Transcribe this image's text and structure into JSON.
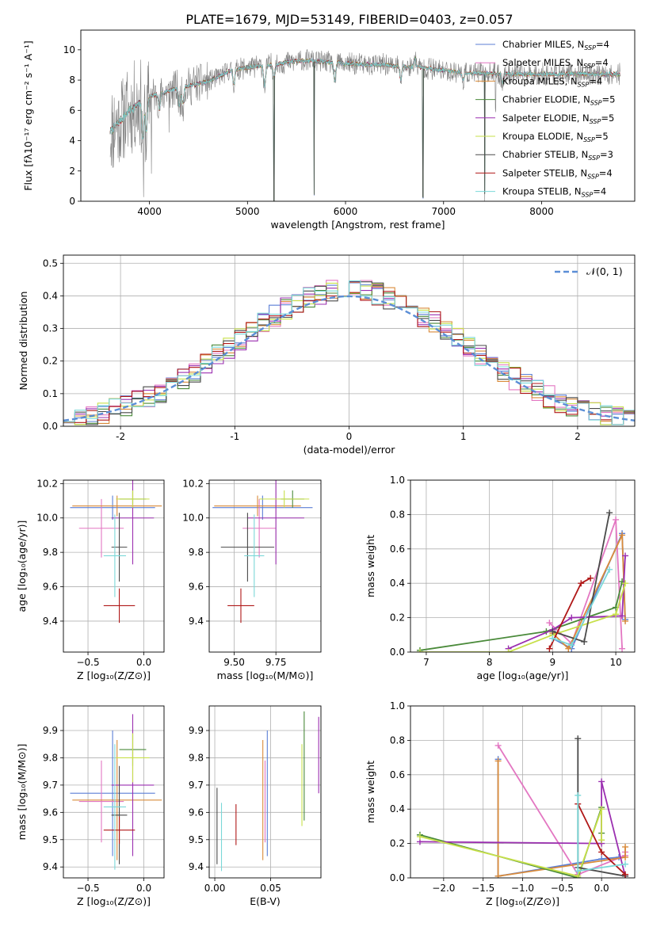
{
  "figure": {
    "title": "PLATE=1679, MJD=53149, FIBERID=0403, z=0.057"
  },
  "colors": {
    "Chabrier MILES": "#5b7fd6",
    "Salpeter MILES": "#e377c2",
    "Kroupa MILES": "#d98b3a",
    "Chabrier ELODIE": "#4a8a3a",
    "Salpeter ELODIE": "#9b2fb0",
    "Kroupa ELODIE": "#c7e04a",
    "Chabrier STELIB": "#4a4a4a",
    "Salpeter STELIB": "#b01818",
    "Kroupa STELIB": "#7ad8d8",
    "observed": "#808080",
    "normal": "#5b8ed6",
    "grid": "#b0b0b0"
  },
  "chart_data": [
    {
      "id": "spectrum",
      "type": "line",
      "xlabel": "wavelength [Angstrom, rest frame]",
      "ylabel": "Flux [fλ10⁻¹⁷ erg cm⁻² s⁻¹ A⁻¹]",
      "xlim": [
        3300,
        8950
      ],
      "ylim": [
        0,
        11.3
      ],
      "xticks": [
        4000,
        5000,
        6000,
        7000,
        8000
      ],
      "yticks": [
        0,
        2,
        4,
        6,
        8,
        10
      ],
      "grid": false,
      "legend_position": "top-right",
      "legend": [
        {
          "model": "Chabrier MILES",
          "text": "Chabrier MILES, N",
          "sub": "SSP",
          "n": "=4"
        },
        {
          "model": "Salpeter MILES",
          "text": "Salpeter MILES, N",
          "sub": "SSP",
          "n": "=4"
        },
        {
          "model": "Kroupa MILES",
          "text": "Kroupa MILES, N",
          "sub": "SSP",
          "n": "=4"
        },
        {
          "model": "Chabrier ELODIE",
          "text": "Chabrier ELODIE, N",
          "sub": "SSP",
          "n": "=5"
        },
        {
          "model": "Salpeter ELODIE",
          "text": "Salpeter ELODIE, N",
          "sub": "SSP",
          "n": "=5"
        },
        {
          "model": "Kroupa ELODIE",
          "text": "Kroupa ELODIE, N",
          "sub": "SSP",
          "n": "=5"
        },
        {
          "model": "Chabrier STELIB",
          "text": "Chabrier STELIB, N",
          "sub": "SSP",
          "n": "=3"
        },
        {
          "model": "Salpeter STELIB",
          "text": "Salpeter STELIB, N",
          "sub": "SSP",
          "n": "=4"
        },
        {
          "model": "Kroupa STELIB",
          "text": "Kroupa STELIB, N",
          "sub": "SSP",
          "n": "=4"
        }
      ],
      "continuum": [
        [
          3600,
          4.6
        ],
        [
          3800,
          6.0
        ],
        [
          4000,
          6.9
        ],
        [
          4300,
          7.5
        ],
        [
          4600,
          7.9
        ],
        [
          4850,
          8.7
        ],
        [
          5200,
          9.0
        ],
        [
          5600,
          9.3
        ],
        [
          6000,
          9.1
        ],
        [
          6400,
          9.0
        ],
        [
          6800,
          8.8
        ],
        [
          7200,
          8.5
        ],
        [
          7600,
          8.4
        ],
        [
          8000,
          8.4
        ],
        [
          8400,
          8.4
        ],
        [
          8800,
          8.4
        ]
      ],
      "features": [
        [
          3933,
          -2.6
        ],
        [
          3968,
          -2.2
        ],
        [
          4101,
          -1.0
        ],
        [
          4305,
          -1.2
        ],
        [
          4340,
          -1.1
        ],
        [
          4861,
          -1.0
        ],
        [
          5175,
          -1.4
        ],
        [
          5270,
          -0.8
        ],
        [
          5890,
          -1.2
        ],
        [
          6563,
          -0.9
        ],
        [
          6708,
          0.6
        ],
        [
          7200,
          -0.5
        ],
        [
          7600,
          -0.6
        ]
      ],
      "spikes": [
        [
          3940,
          -7.0
        ],
        [
          4020,
          -4.5
        ],
        [
          4200,
          -3.5
        ],
        [
          5270,
          -8.7
        ],
        [
          5680,
          -8.9
        ],
        [
          5900,
          -0.4
        ],
        [
          6790,
          -8.6
        ],
        [
          7420,
          -8.1
        ],
        [
          7530,
          -2.0
        ]
      ]
    },
    {
      "id": "residuals",
      "type": "histogram",
      "xlabel": "(data-model)/error",
      "ylabel": "Normed distribution",
      "xlim": [
        -2.5,
        2.5
      ],
      "ylim": [
        0,
        0.525
      ],
      "xticks": [
        -2,
        -1,
        0,
        1,
        2
      ],
      "yticks": [
        0.0,
        0.1,
        0.2,
        0.3,
        0.4,
        0.5
      ],
      "grid": true,
      "legend_position": "top-right",
      "normal_label": "𝒩(0, 1)",
      "bins": 50,
      "bin_width": 0.1
    },
    {
      "id": "age_vs_Z",
      "type": "scatter",
      "xlabel": "Z [log₁₀(Z/Z⊙)]",
      "ylabel": "age  [log₁₀(age/yr)]",
      "xlim": [
        -0.72,
        0.18
      ],
      "ylim": [
        9.22,
        10.22
      ],
      "xticks": [
        -0.5,
        0.0
      ],
      "xtick_labels": [
        "−0.5",
        "0.0"
      ],
      "yticks": [
        9.4,
        9.6,
        9.8,
        10.0,
        10.2
      ],
      "grid": true,
      "points": [
        {
          "model": "Chabrier MILES",
          "x": -0.28,
          "xerr": 0.38,
          "y": 10.06,
          "yerr": 0.07
        },
        {
          "model": "Salpeter MILES",
          "x": -0.38,
          "xerr": 0.2,
          "y": 9.94,
          "yerr": 0.17
        },
        {
          "model": "Kroupa MILES",
          "x": -0.24,
          "xerr": 0.4,
          "y": 10.07,
          "yerr": 0.06
        },
        {
          "model": "Chabrier ELODIE",
          "x": -0.1,
          "xerr": 0.12,
          "y": 10.11,
          "yerr": 0.05
        },
        {
          "model": "Salpeter ELODIE",
          "x": -0.1,
          "xerr": 0.19,
          "y": 10.0,
          "yerr": 0.27
        },
        {
          "model": "Kroupa ELODIE",
          "x": -0.1,
          "xerr": 0.15,
          "y": 10.11,
          "yerr": 0.05
        },
        {
          "model": "Chabrier STELIB",
          "x": -0.22,
          "xerr": 0.07,
          "y": 9.83,
          "yerr": 0.2
        },
        {
          "model": "Salpeter STELIB",
          "x": -0.22,
          "xerr": 0.14,
          "y": 9.49,
          "yerr": 0.1
        },
        {
          "model": "Kroupa STELIB",
          "x": -0.26,
          "xerr": 0.1,
          "y": 9.78,
          "yerr": 0.24
        }
      ]
    },
    {
      "id": "age_vs_mass",
      "type": "scatter",
      "xlabel": "mass [log₁₀(M/M⊙)]",
      "ylabel": "",
      "xlim": [
        9.35,
        10.02
      ],
      "ylim": [
        9.22,
        10.22
      ],
      "xticks": [
        9.5,
        9.75
      ],
      "xtick_labels": [
        "9.50",
        "9.75"
      ],
      "yticks": [
        9.4,
        9.6,
        9.8,
        10.0,
        10.2
      ],
      "grid": true,
      "points": [
        {
          "model": "Chabrier MILES",
          "x": 9.67,
          "xerr": 0.3,
          "y": 10.06,
          "yerr": 0.07
        },
        {
          "model": "Salpeter MILES",
          "x": 9.65,
          "xerr": 0.1,
          "y": 9.94,
          "yerr": 0.17
        },
        {
          "model": "Kroupa MILES",
          "x": 9.64,
          "xerr": 0.26,
          "y": 10.07,
          "yerr": 0.06
        },
        {
          "model": "Chabrier ELODIE",
          "x": 9.85,
          "xerr": 0.07,
          "y": 10.11,
          "yerr": 0.05
        },
        {
          "model": "Salpeter ELODIE",
          "x": 9.75,
          "xerr": 0.17,
          "y": 10.0,
          "yerr": 0.27
        },
        {
          "model": "Kroupa ELODIE",
          "x": 9.8,
          "xerr": 0.15,
          "y": 10.11,
          "yerr": 0.05
        },
        {
          "model": "Chabrier STELIB",
          "x": 9.58,
          "xerr": 0.16,
          "y": 9.83,
          "yerr": 0.2
        },
        {
          "model": "Salpeter STELIB",
          "x": 9.54,
          "xerr": 0.08,
          "y": 9.49,
          "yerr": 0.1
        },
        {
          "model": "Kroupa STELIB",
          "x": 9.62,
          "xerr": 0.06,
          "y": 9.78,
          "yerr": 0.24
        }
      ]
    },
    {
      "id": "weight_vs_age",
      "type": "line",
      "xlabel": "age  [log₁₀(age/yr)]",
      "ylabel": "mass weight",
      "xlim": [
        6.75,
        10.3
      ],
      "ylim": [
        0,
        1.0
      ],
      "xticks": [
        7,
        8,
        9,
        10
      ],
      "yticks": [
        0.0,
        0.2,
        0.4,
        0.6,
        0.8,
        1.0
      ],
      "grid": true,
      "series": [
        {
          "model": "Chabrier MILES",
          "x": [
            9.0,
            9.3,
            10.1,
            10.15
          ],
          "y": [
            0.08,
            0.02,
            0.69,
            0.19
          ]
        },
        {
          "model": "Salpeter MILES",
          "x": [
            8.95,
            9.3,
            10.0,
            10.1
          ],
          "y": [
            0.17,
            0.05,
            0.77,
            0.02
          ]
        },
        {
          "model": "Kroupa MILES",
          "x": [
            9.0,
            9.25,
            10.1,
            10.15
          ],
          "y": [
            0.11,
            0.02,
            0.68,
            0.18
          ]
        },
        {
          "model": "Chabrier ELODIE",
          "x": [
            6.9,
            8.9,
            10.0,
            10.1
          ],
          "y": [
            0.01,
            0.12,
            0.26,
            0.41
          ]
        },
        {
          "model": "Salpeter ELODIE",
          "x": [
            8.3,
            9.0,
            9.3,
            10.1,
            10.15
          ],
          "y": [
            0.02,
            0.13,
            0.2,
            0.21,
            0.56
          ]
        },
        {
          "model": "Kroupa ELODIE",
          "x": [
            6.9,
            8.3,
            9.0,
            10.0,
            10.15
          ],
          "y": [
            0.0,
            0.0,
            0.1,
            0.22,
            0.4
          ]
        },
        {
          "model": "Chabrier STELIB",
          "x": [
            9.0,
            9.5,
            9.9
          ],
          "y": [
            0.12,
            0.06,
            0.81
          ]
        },
        {
          "model": "Salpeter STELIB",
          "x": [
            8.95,
            9.45,
            9.6
          ],
          "y": [
            0.02,
            0.4,
            0.43
          ]
        },
        {
          "model": "Kroupa STELIB",
          "x": [
            9.0,
            9.3,
            9.9
          ],
          "y": [
            0.08,
            0.04,
            0.48
          ]
        }
      ]
    },
    {
      "id": "mass_vs_Z",
      "type": "scatter",
      "xlabel": "Z [log₁₀(Z/Z⊙)]",
      "ylabel": "mass [log₁₀(M/M⊙)]",
      "xlim": [
        -0.72,
        0.18
      ],
      "ylim": [
        9.36,
        9.99
      ],
      "xticks": [
        -0.5,
        0.0
      ],
      "xtick_labels": [
        "−0.5",
        "0.0"
      ],
      "yticks": [
        9.4,
        9.5,
        9.6,
        9.7,
        9.8,
        9.9
      ],
      "grid": true,
      "points": [
        {
          "model": "Chabrier MILES",
          "x": -0.28,
          "xerr": 0.38,
          "y": 9.67,
          "yerr": 0.23
        },
        {
          "model": "Salpeter MILES",
          "x": -0.38,
          "xerr": 0.2,
          "y": 9.64,
          "yerr": 0.15
        },
        {
          "model": "Kroupa MILES",
          "x": -0.24,
          "xerr": 0.4,
          "y": 9.645,
          "yerr": 0.22
        },
        {
          "model": "Chabrier ELODIE",
          "x": -0.1,
          "xerr": 0.12,
          "y": 9.83,
          "yerr": 0.06
        },
        {
          "model": "Salpeter ELODIE",
          "x": -0.1,
          "xerr": 0.19,
          "y": 9.7,
          "yerr": 0.26
        },
        {
          "model": "Kroupa ELODIE",
          "x": -0.1,
          "xerr": 0.15,
          "y": 9.8,
          "yerr": 0.09
        },
        {
          "model": "Chabrier STELIB",
          "x": -0.22,
          "xerr": 0.07,
          "y": 9.59,
          "yerr": 0.18
        },
        {
          "model": "Salpeter STELIB",
          "x": -0.22,
          "xerr": 0.14,
          "y": 9.535,
          "yerr": 0.05
        },
        {
          "model": "Kroupa STELIB",
          "x": -0.26,
          "xerr": 0.1,
          "y": 9.62,
          "yerr": 0.23
        }
      ]
    },
    {
      "id": "mass_vs_EBV",
      "type": "scatter",
      "xlabel": "E(B-V)",
      "ylabel": "",
      "xlim": [
        -0.005,
        0.095
      ],
      "ylim": [
        9.36,
        9.99
      ],
      "xticks": [
        0.0,
        0.05
      ],
      "xtick_labels": [
        "0.00",
        "0.05"
      ],
      "yticks": [
        9.4,
        9.5,
        9.6,
        9.7,
        9.8,
        9.9
      ],
      "grid": true,
      "points": [
        {
          "model": "Chabrier MILES",
          "x": 0.047,
          "y": 9.67,
          "yerr": 0.23
        },
        {
          "model": "Salpeter MILES",
          "x": 0.045,
          "y": 9.64,
          "yerr": 0.15
        },
        {
          "model": "Kroupa MILES",
          "x": 0.043,
          "y": 9.645,
          "yerr": 0.22
        },
        {
          "model": "Chabrier ELODIE",
          "x": 0.08,
          "y": 9.77,
          "yerr": 0.2
        },
        {
          "model": "Salpeter ELODIE",
          "x": 0.093,
          "y": 9.81,
          "yerr": 0.14
        },
        {
          "model": "Kroupa ELODIE",
          "x": 0.078,
          "y": 9.7,
          "yerr": 0.15
        },
        {
          "model": "Chabrier STELIB",
          "x": 0.002,
          "y": 9.55,
          "yerr": 0.14
        },
        {
          "model": "Salpeter STELIB",
          "x": 0.019,
          "y": 9.555,
          "yerr": 0.075
        },
        {
          "model": "Kroupa STELIB",
          "x": 0.006,
          "y": 9.51,
          "yerr": 0.125
        }
      ]
    },
    {
      "id": "weight_vs_Z",
      "type": "line",
      "xlabel": "Z [log₁₀(Z/Z⊙)]",
      "ylabel": "mass weight",
      "xlim": [
        -2.42,
        0.42
      ],
      "ylim": [
        0,
        1.0
      ],
      "xticks": [
        -2.0,
        -1.5,
        -1.0,
        -0.5,
        0.0
      ],
      "xtick_labels": [
        "−2.0",
        "−1.5",
        "−1.0",
        "−0.5",
        "0.0"
      ],
      "yticks": [
        0.0,
        0.2,
        0.4,
        0.6,
        0.8,
        1.0
      ],
      "grid": true,
      "series": [
        {
          "model": "Chabrier MILES",
          "x": [
            -1.31,
            -1.31,
            0.0,
            0.22
          ],
          "y": [
            0.69,
            0.01,
            0.11,
            0.12
          ]
        },
        {
          "model": "Salpeter MILES",
          "x": [
            -1.31,
            -0.3,
            0.3,
            0.3
          ],
          "y": [
            0.77,
            0.02,
            0.13,
            0.15
          ]
        },
        {
          "model": "Kroupa MILES",
          "x": [
            -1.31,
            -1.31,
            0.3,
            0.3
          ],
          "y": [
            0.68,
            0.01,
            0.12,
            0.18
          ]
        },
        {
          "model": "Chabrier ELODIE",
          "x": [
            -2.3,
            -0.3,
            0.0,
            0.0
          ],
          "y": [
            0.25,
            0.0,
            0.41,
            0.26
          ]
        },
        {
          "model": "Salpeter ELODIE",
          "x": [
            -2.3,
            0.0,
            0.0,
            0.3
          ],
          "y": [
            0.21,
            0.2,
            0.56,
            0.01
          ]
        },
        {
          "model": "Kroupa ELODIE",
          "x": [
            -2.3,
            -0.3,
            0.0,
            0.0
          ],
          "y": [
            0.24,
            0.01,
            0.4,
            0.22
          ]
        },
        {
          "model": "Chabrier STELIB",
          "x": [
            -0.3,
            -0.3,
            0.3
          ],
          "y": [
            0.81,
            0.06,
            0.01
          ]
        },
        {
          "model": "Salpeter STELIB",
          "x": [
            -0.3,
            0.0,
            0.3
          ],
          "y": [
            0.43,
            0.15,
            0.02
          ]
        },
        {
          "model": "Kroupa STELIB",
          "x": [
            -0.3,
            -0.3,
            0.3
          ],
          "y": [
            0.48,
            0.04,
            0.08
          ]
        }
      ]
    }
  ]
}
